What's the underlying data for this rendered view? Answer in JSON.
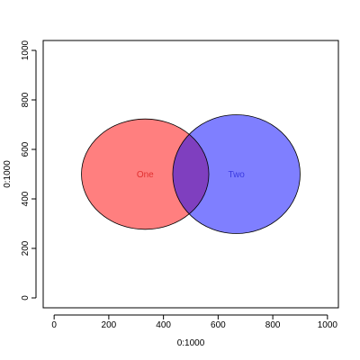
{
  "chart_data": {
    "type": "scatter",
    "xlabel": "0:1000",
    "ylabel": "0:1000",
    "xlim": [
      -40,
      1040
    ],
    "ylim": [
      -40,
      1040
    ],
    "xticks": [
      0,
      200,
      400,
      600,
      800,
      1000
    ],
    "yticks": [
      0,
      200,
      400,
      600,
      800,
      1000
    ],
    "grid": false,
    "sets": [
      {
        "name": "One",
        "cx": 333,
        "cy": 500,
        "rx": 233,
        "ry": 223,
        "fill": "#ff0000",
        "fill_opacity": 0.5,
        "label_color": "#e03030"
      },
      {
        "name": "Two",
        "cx": 667,
        "cy": 500,
        "rx": 233,
        "ry": 240,
        "fill": "#0000ff",
        "fill_opacity": 0.5,
        "label_color": "#3a3ae0"
      }
    ],
    "outline_color": "#000000"
  }
}
